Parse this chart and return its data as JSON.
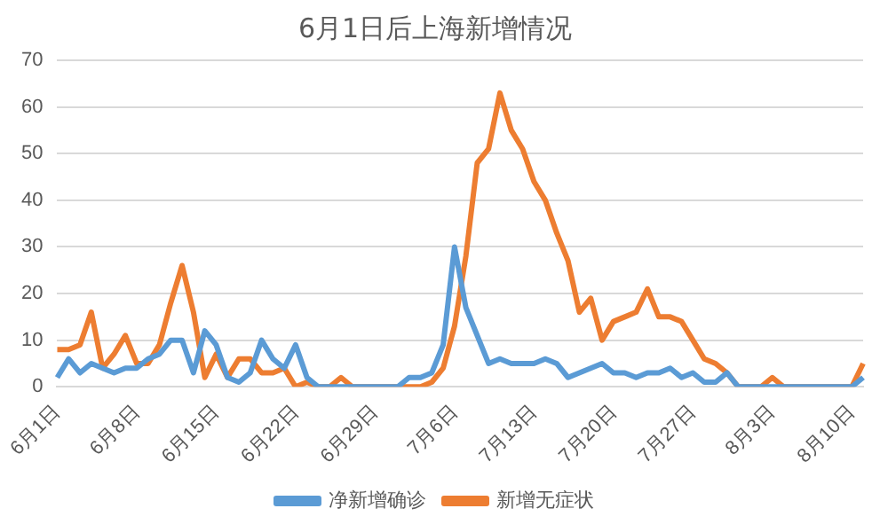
{
  "chart_data": {
    "type": "line",
    "title": "6月1日后上海新增情况",
    "categories": [
      "6月1日",
      null,
      null,
      null,
      null,
      null,
      null,
      "6月8日",
      null,
      null,
      null,
      null,
      null,
      null,
      "6月15日",
      null,
      null,
      null,
      null,
      null,
      null,
      "6月22日",
      null,
      null,
      null,
      null,
      null,
      null,
      "6月29日",
      null,
      null,
      null,
      null,
      null,
      null,
      "7月6日",
      null,
      null,
      null,
      null,
      null,
      null,
      "7月13日",
      null,
      null,
      null,
      null,
      null,
      null,
      "7月20日",
      null,
      null,
      null,
      null,
      null,
      null,
      "7月27日",
      null,
      null,
      null,
      null,
      null,
      null,
      "8月3日",
      null,
      null,
      null,
      null,
      null,
      null,
      "8月10日",
      null
    ],
    "series": [
      {
        "name": "净新增确诊",
        "color": "#5b9bd5",
        "values": [
          2,
          6,
          3,
          5,
          4,
          3,
          4,
          4,
          6,
          7,
          10,
          10,
          3,
          12,
          9,
          2,
          1,
          3,
          10,
          6,
          4,
          9,
          2,
          0,
          0,
          0,
          0,
          0,
          0,
          0,
          0,
          2,
          2,
          3,
          9,
          30,
          17,
          11,
          5,
          6,
          5,
          5,
          5,
          6,
          5,
          2,
          3,
          4,
          5,
          3,
          3,
          2,
          3,
          3,
          4,
          2,
          3,
          1,
          1,
          3,
          0,
          0,
          0,
          0,
          0,
          0,
          0,
          0,
          0,
          0,
          0,
          2
        ]
      },
      {
        "name": "新增无症状",
        "color": "#ed7d31",
        "values": [
          8,
          8,
          9,
          16,
          4,
          7,
          11,
          5,
          5,
          9,
          18,
          26,
          16,
          2,
          7,
          2,
          6,
          6,
          3,
          3,
          4,
          0,
          1,
          0,
          0,
          2,
          0,
          0,
          0,
          0,
          0,
          0,
          0,
          1,
          4,
          13,
          28,
          48,
          51,
          63,
          55,
          51,
          44,
          40,
          33,
          27,
          16,
          19,
          10,
          14,
          15,
          16,
          21,
          15,
          15,
          14,
          10,
          6,
          5,
          3,
          0,
          0,
          0,
          2,
          0,
          0,
          0,
          0,
          0,
          0,
          0,
          5
        ]
      }
    ],
    "ylim": [
      0,
      70
    ],
    "yticks": [
      0,
      10,
      20,
      30,
      40,
      50,
      60,
      70
    ],
    "grid": "y",
    "legend": "bottom",
    "marker": "none",
    "line_style": "solid"
  }
}
